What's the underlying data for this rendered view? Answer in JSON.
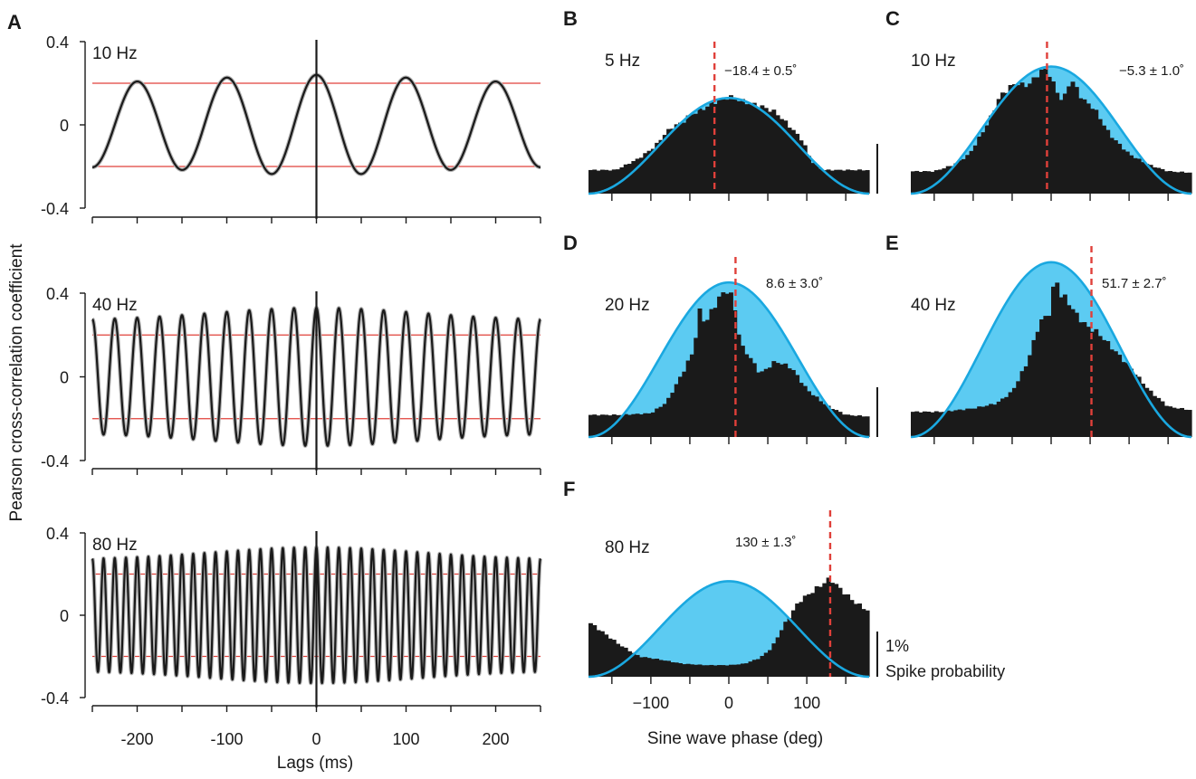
{
  "figure": {
    "panel_labels": {
      "A": "A",
      "B": "B",
      "C": "C",
      "D": "D",
      "E": "E",
      "F": "F"
    },
    "xcorr_ylabel": "Pearson cross-correlation coefficient",
    "xcorr_xlabel": "Lags (ms)",
    "phase_xlabel": "Sine wave phase (deg)",
    "scale_bar": {
      "value": "1%",
      "label": "Spike probability"
    }
  },
  "chart_data": [
    {
      "type": "line",
      "panel": "A",
      "freq_label": "10 Hz",
      "frequency_hz": 10,
      "peak_amplitude": 0.24,
      "amplitude_edge": 0.2,
      "xlim": [
        -250,
        250
      ],
      "ylim": [
        -0.4,
        0.4
      ],
      "yticks": [
        "0.4",
        "0",
        "-0.4"
      ],
      "threshold": [
        0.2,
        -0.2
      ],
      "colors": {
        "trace": "#1a1a1a",
        "sem": "#b3b3b3",
        "threshold": "#e0403a"
      }
    },
    {
      "type": "line",
      "panel": "A",
      "freq_label": "40 Hz",
      "frequency_hz": 40,
      "peak_amplitude": 0.33,
      "amplitude_edge": 0.27,
      "xlim": [
        -250,
        250
      ],
      "ylim": [
        -0.4,
        0.4
      ],
      "yticks": [
        "0.4",
        "0",
        "-0.4"
      ],
      "threshold": [
        0.2,
        -0.2
      ],
      "colors": {
        "trace": "#1a1a1a",
        "sem": "#b3b3b3",
        "threshold": "#e0403a"
      }
    },
    {
      "type": "line",
      "panel": "A",
      "freq_label": "80 Hz",
      "frequency_hz": 80,
      "peak_amplitude": 0.33,
      "amplitude_edge": 0.27,
      "xlim": [
        -250,
        250
      ],
      "ylim": [
        -0.4,
        0.4
      ],
      "yticks": [
        "0.4",
        "0",
        "-0.4"
      ],
      "threshold": [
        0.2,
        -0.2
      ],
      "xticks": [
        -200,
        -100,
        0,
        100,
        200
      ],
      "xtick_labels": [
        "-200",
        "-100",
        "0",
        "100",
        "200"
      ],
      "colors": {
        "trace": "#1a1a1a",
        "sem": "#b3b3b3",
        "threshold": "#e0403a"
      }
    },
    {
      "type": "histogram",
      "panel": "B",
      "freq_label": "5 Hz",
      "annotation": "−18.4 ± 0.5˚",
      "mean_phase_deg": -18.4,
      "xlim": [
        -180,
        180
      ],
      "sine_fit_max": 0.73,
      "profile_deg": [
        -180,
        -145,
        -115,
        -95,
        -80,
        -70,
        -60,
        -50,
        -35,
        -18,
        0,
        20,
        40,
        60,
        80,
        95,
        105,
        120,
        140,
        180
      ],
      "profile_level": [
        0.18,
        0.18,
        0.27,
        0.36,
        0.47,
        0.52,
        0.54,
        0.6,
        0.64,
        0.7,
        0.74,
        0.7,
        0.67,
        0.62,
        0.5,
        0.4,
        0.25,
        0.18,
        0.18,
        0.18
      ],
      "colors": {
        "hist": "#1a1a1a",
        "fit": "#1aa8e0",
        "fit_fill": "#5ccbf2",
        "mean": "#e0403a"
      }
    },
    {
      "type": "histogram",
      "panel": "C",
      "freq_label": "10 Hz",
      "annotation": "−5.3 ± 1.0˚",
      "mean_phase_deg": -5.3,
      "xlim": [
        -180,
        180
      ],
      "sine_fit_max": 0.97,
      "profile_deg": [
        -180,
        -150,
        -125,
        -105,
        -80,
        -65,
        -55,
        -45,
        -35,
        -25,
        -15,
        -5,
        5,
        15,
        25,
        40,
        55,
        75,
        100,
        125,
        150,
        180
      ],
      "profile_level": [
        0.17,
        0.17,
        0.22,
        0.3,
        0.55,
        0.75,
        0.8,
        0.85,
        0.82,
        0.85,
        0.93,
        0.95,
        0.8,
        0.7,
        0.88,
        0.72,
        0.65,
        0.45,
        0.3,
        0.22,
        0.17,
        0.16
      ],
      "colors": {
        "hist": "#1a1a1a",
        "fit": "#1aa8e0",
        "fit_fill": "#5ccbf2",
        "mean": "#e0403a"
      }
    },
    {
      "type": "histogram",
      "panel": "D",
      "freq_label": "20 Hz",
      "annotation": "8.6 ± 3.0˚",
      "mean_phase_deg": 8.6,
      "xlim": [
        -180,
        180
      ],
      "sine_fit_max": 0.98,
      "profile_deg": [
        -180,
        -140,
        -100,
        -80,
        -60,
        -45,
        -38,
        -30,
        -20,
        -10,
        0,
        8,
        15,
        25,
        40,
        60,
        80,
        100,
        125,
        150,
        180
      ],
      "profile_level": [
        0.14,
        0.14,
        0.15,
        0.22,
        0.4,
        0.55,
        0.8,
        0.72,
        0.82,
        0.9,
        0.94,
        0.8,
        0.58,
        0.52,
        0.4,
        0.48,
        0.44,
        0.3,
        0.2,
        0.14,
        0.13
      ],
      "colors": {
        "hist": "#1a1a1a",
        "fit": "#1aa8e0",
        "fit_fill": "#5ccbf2",
        "mean": "#e0403a"
      }
    },
    {
      "type": "histogram",
      "panel": "E",
      "freq_label": "40 Hz",
      "annotation": "51.7 ± 2.7˚",
      "mean_phase_deg": 51.7,
      "xlim": [
        -180,
        180
      ],
      "sine_fit_max": 1.04,
      "profile_deg": [
        -180,
        -140,
        -100,
        -70,
        -50,
        -30,
        -15,
        0,
        5,
        10,
        20,
        30,
        45,
        60,
        80,
        100,
        125,
        150,
        180
      ],
      "profile_level": [
        0.15,
        0.15,
        0.17,
        0.2,
        0.27,
        0.45,
        0.68,
        0.75,
        1.0,
        0.85,
        0.82,
        0.74,
        0.66,
        0.62,
        0.52,
        0.42,
        0.28,
        0.18,
        0.16
      ],
      "colors": {
        "hist": "#1a1a1a",
        "fit": "#1aa8e0",
        "fit_fill": "#5ccbf2",
        "mean": "#e0403a"
      }
    },
    {
      "type": "histogram",
      "panel": "F",
      "freq_label": "80 Hz",
      "annotation": "130 ± 1.3˚",
      "mean_phase_deg": 130,
      "xlim": [
        -180,
        180
      ],
      "sine_fit_max": 0.66,
      "xticks": [
        -100,
        0,
        100
      ],
      "xtick_labels": [
        "−100",
        "0",
        "100"
      ],
      "profile_deg": [
        -180,
        -160,
        -140,
        -115,
        -90,
        -60,
        -30,
        0,
        20,
        40,
        55,
        70,
        90,
        110,
        125,
        130,
        140,
        160,
        180
      ],
      "profile_level": [
        0.38,
        0.3,
        0.22,
        0.14,
        0.12,
        0.09,
        0.08,
        0.08,
        0.09,
        0.13,
        0.2,
        0.35,
        0.52,
        0.6,
        0.66,
        0.68,
        0.62,
        0.52,
        0.45
      ],
      "colors": {
        "hist": "#1a1a1a",
        "fit": "#1aa8e0",
        "fit_fill": "#5ccbf2",
        "mean": "#e0403a"
      }
    }
  ]
}
